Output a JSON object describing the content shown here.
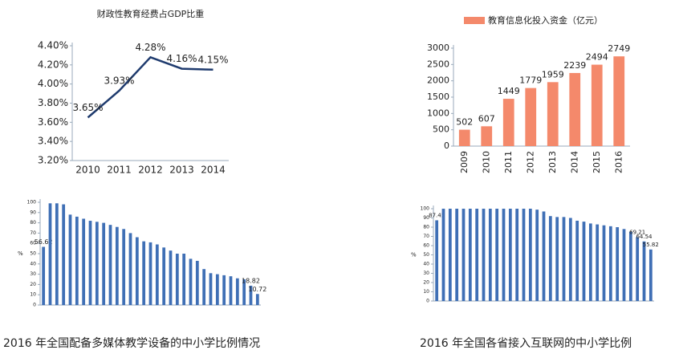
{
  "chart_data": [
    {
      "type": "line",
      "title": "财政性教育经费占GDP比重",
      "color": "#1f3b6e",
      "categories": [
        "2010",
        "2011",
        "2012",
        "2013",
        "2014"
      ],
      "values": [
        3.65,
        3.93,
        4.28,
        4.16,
        4.15
      ],
      "value_labels": [
        "3.65%",
        "3.93%",
        "4.28%",
        "4.16%",
        "4.15%"
      ],
      "ylim": [
        3.2,
        4.4
      ],
      "yticks": [
        {
          "value": 3.2,
          "label": "3.20%"
        },
        {
          "value": 3.4,
          "label": "3.40%"
        },
        {
          "value": 3.6,
          "label": "3.60%"
        },
        {
          "value": 3.8,
          "label": "3.80%"
        },
        {
          "value": 4.0,
          "label": "4.00%"
        },
        {
          "value": 4.2,
          "label": "4.20%"
        },
        {
          "value": 4.4,
          "label": "4.40%"
        }
      ]
    },
    {
      "type": "bar",
      "series_name": "教育信息化投入资金（亿元）",
      "color": "#f4896b",
      "categories": [
        "2009",
        "2010",
        "2011",
        "2012",
        "2013",
        "2014",
        "2015",
        "2016"
      ],
      "values": [
        502,
        607,
        1449,
        1779,
        1959,
        2239,
        2494,
        2749
      ],
      "ylim": [
        0,
        3000
      ],
      "yticks": [
        0,
        500,
        1000,
        1500,
        2000,
        2500,
        3000
      ]
    },
    {
      "type": "bar",
      "caption": "2016 年全国配备多媒体教学设备的中小学比例情况",
      "ylabel": "%",
      "color": "#3f6fb5",
      "categories": [
        null,
        null,
        null,
        null,
        null,
        null,
        null,
        null,
        null,
        null,
        null,
        null,
        null,
        null,
        null,
        null,
        null,
        null,
        null,
        null,
        null,
        null,
        null,
        null,
        null,
        null,
        null,
        null,
        null,
        null,
        null,
        null,
        null
      ],
      "values": [
        56.62,
        99,
        99,
        98,
        88,
        86,
        84,
        82,
        81,
        80,
        78,
        76,
        74,
        70,
        66,
        62,
        61,
        59,
        56,
        53,
        50,
        50,
        45,
        43,
        35,
        31,
        30,
        29,
        28,
        26,
        25,
        18.82,
        10.72
      ],
      "value_labels": [
        "56.62",
        null,
        null,
        null,
        null,
        null,
        null,
        null,
        null,
        null,
        null,
        null,
        null,
        null,
        null,
        null,
        null,
        null,
        null,
        null,
        null,
        null,
        null,
        null,
        null,
        null,
        null,
        null,
        null,
        null,
        null,
        "18.82",
        "10.72"
      ],
      "ylim": [
        0,
        100
      ],
      "yticks": [
        0,
        10,
        20,
        30,
        40,
        50,
        60,
        70,
        80,
        90,
        100
      ]
    },
    {
      "type": "bar",
      "caption": "2016 年全国各省接入互联网的中小学比例",
      "ylabel": "%",
      "color": "#3f6fb5",
      "categories": [
        null,
        null,
        null,
        null,
        null,
        null,
        null,
        null,
        null,
        null,
        null,
        null,
        null,
        null,
        null,
        null,
        null,
        null,
        null,
        null,
        null,
        null,
        null,
        null,
        null,
        null,
        null,
        null,
        null,
        null,
        null,
        null,
        null
      ],
      "values": [
        87.45,
        100,
        100,
        100,
        100,
        100,
        100,
        100,
        100,
        100,
        100,
        100,
        100,
        100,
        100,
        99,
        97,
        92,
        91,
        91,
        90,
        87,
        86,
        84,
        83,
        82,
        81,
        80,
        78,
        75,
        69.21,
        64.54,
        55.82
      ],
      "value_labels": [
        "87.45",
        null,
        null,
        null,
        null,
        null,
        null,
        null,
        null,
        null,
        null,
        null,
        null,
        null,
        null,
        null,
        null,
        null,
        null,
        null,
        null,
        null,
        null,
        null,
        null,
        null,
        null,
        null,
        null,
        null,
        "69.21",
        "64.54",
        "55.82"
      ],
      "ylim": [
        0,
        100
      ],
      "yticks": [
        0,
        10,
        20,
        30,
        40,
        50,
        60,
        70,
        80,
        90,
        100
      ]
    }
  ]
}
